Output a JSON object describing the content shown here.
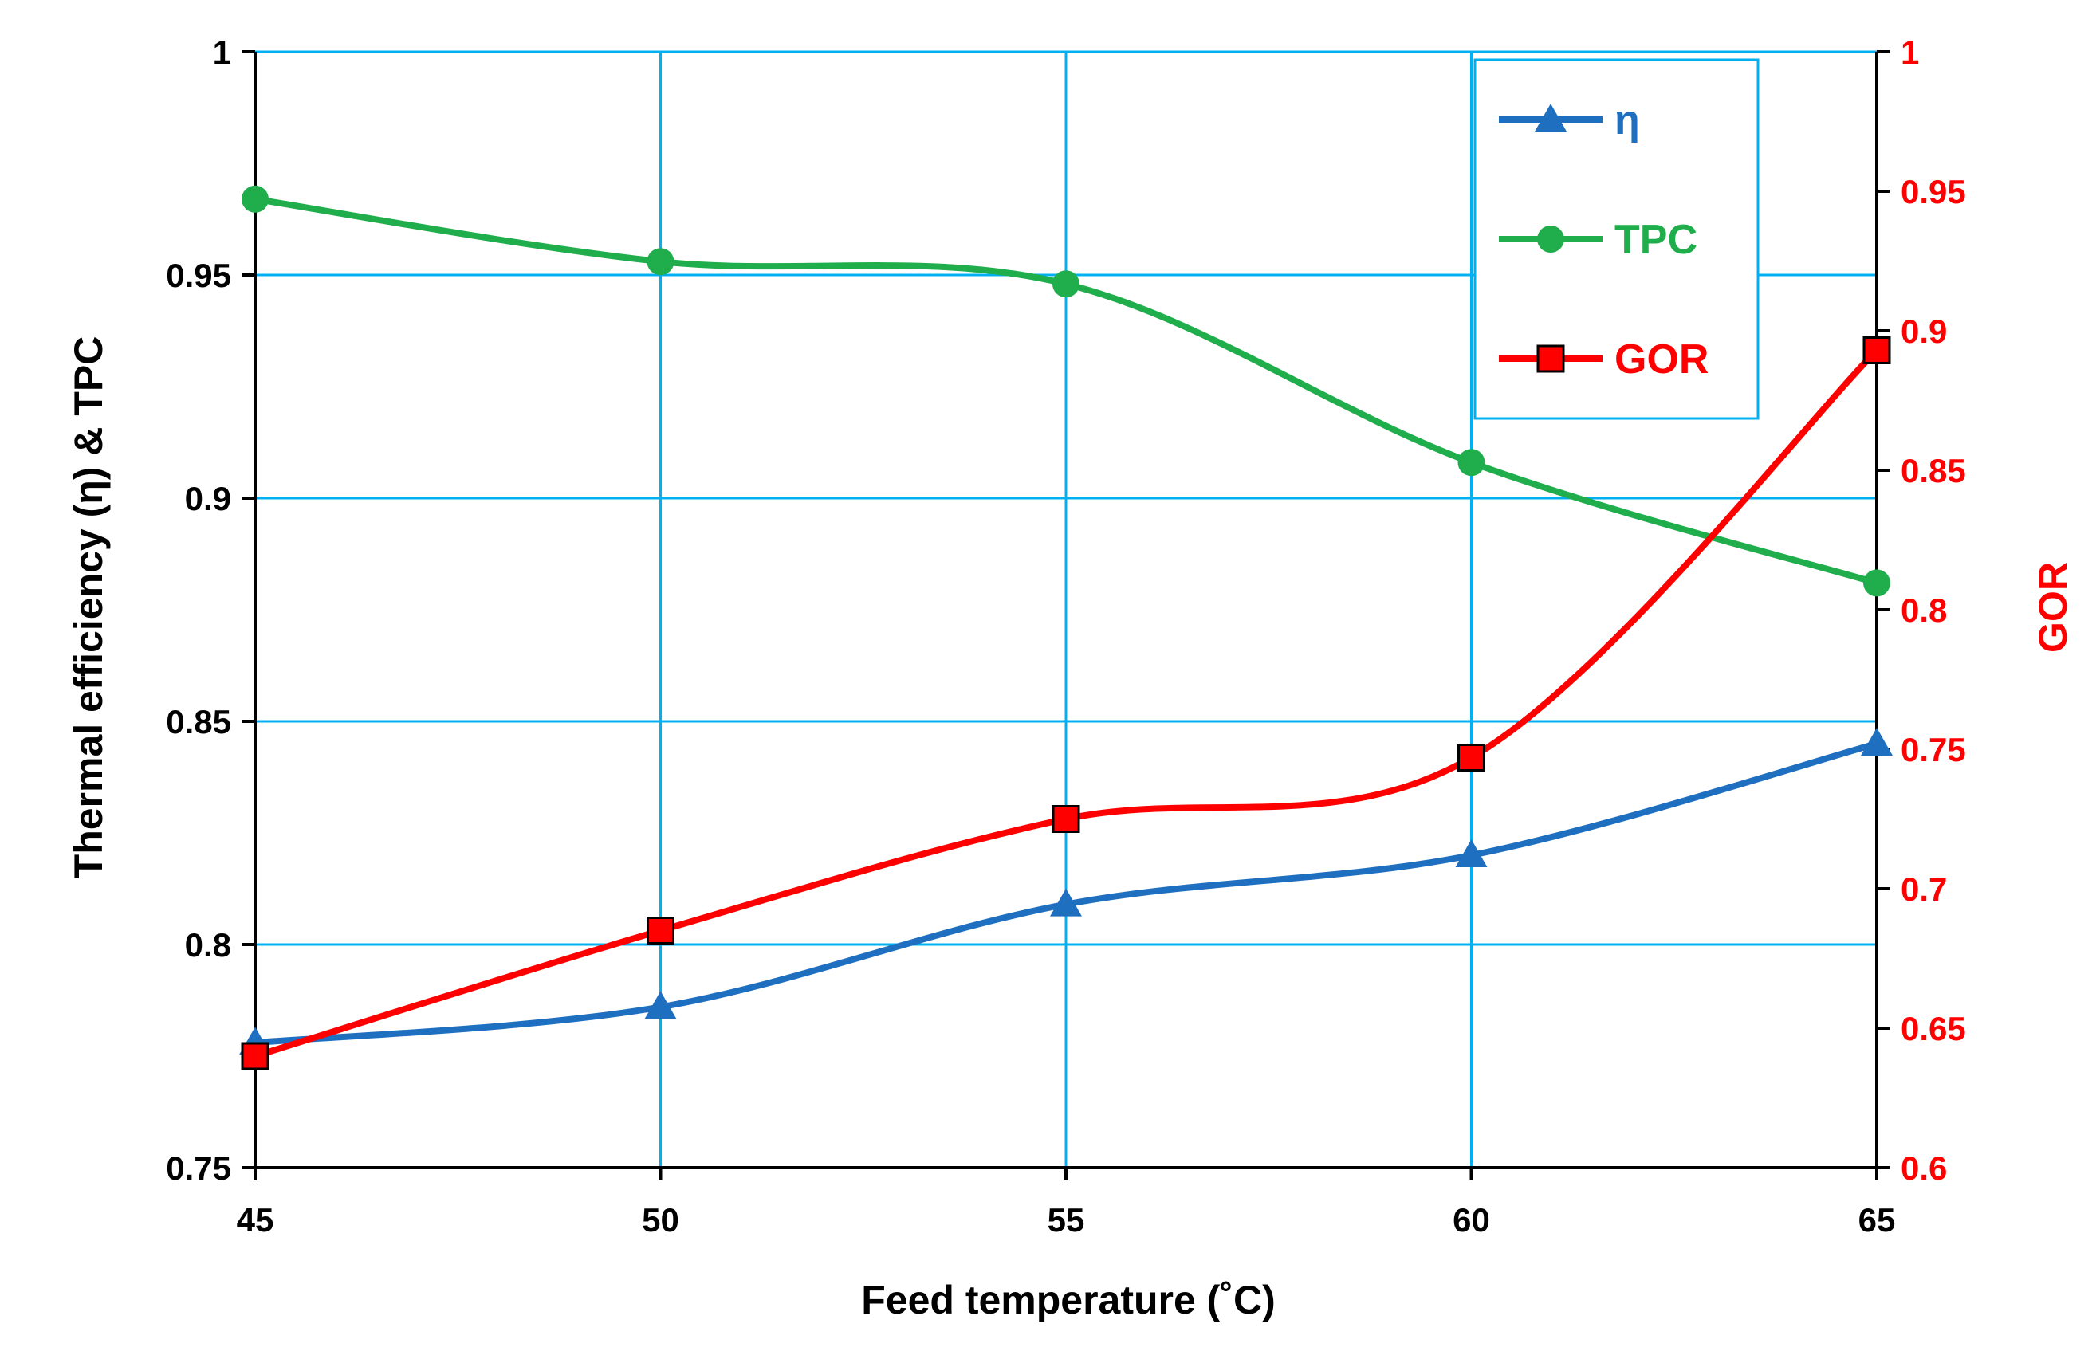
{
  "chart_data": {
    "type": "line",
    "xlabel": "Feed temperature (˚C)",
    "ylabel": "Thermal efficiency (η) & TPC",
    "y2label": "GOR",
    "x": [
      45,
      50,
      55,
      60,
      65
    ],
    "xlim": [
      45,
      65
    ],
    "ylim": [
      0.75,
      1.0
    ],
    "y2lim": [
      0.6,
      1.0
    ],
    "xticks": [
      "45",
      "50",
      "55",
      "60",
      "65"
    ],
    "yticks": [
      "0.75",
      "0.8",
      "0.85",
      "0.9",
      "0.95",
      "1"
    ],
    "y2ticks": [
      "0.6",
      "0.65",
      "0.7",
      "0.75",
      "0.8",
      "0.85",
      "0.9",
      "0.95",
      "1"
    ],
    "grid": true,
    "legend_position": "top-right",
    "series": [
      {
        "name": "η",
        "axis": "left",
        "marker": "triangle",
        "color": "#1f6fc0",
        "values": [
          0.778,
          0.786,
          0.809,
          0.82,
          0.845
        ]
      },
      {
        "name": "TPC",
        "axis": "left",
        "marker": "circle",
        "color": "#1fae4b",
        "values": [
          0.967,
          0.953,
          0.948,
          0.908,
          0.881
        ]
      },
      {
        "name": "GOR",
        "axis": "right",
        "marker": "square",
        "color": "#ff0000",
        "values": [
          0.64,
          0.685,
          0.725,
          0.747,
          0.893
        ]
      }
    ]
  },
  "colors": {
    "grid": "#00b0f0",
    "axis": "#000000",
    "right_axis": "#ff0000"
  }
}
